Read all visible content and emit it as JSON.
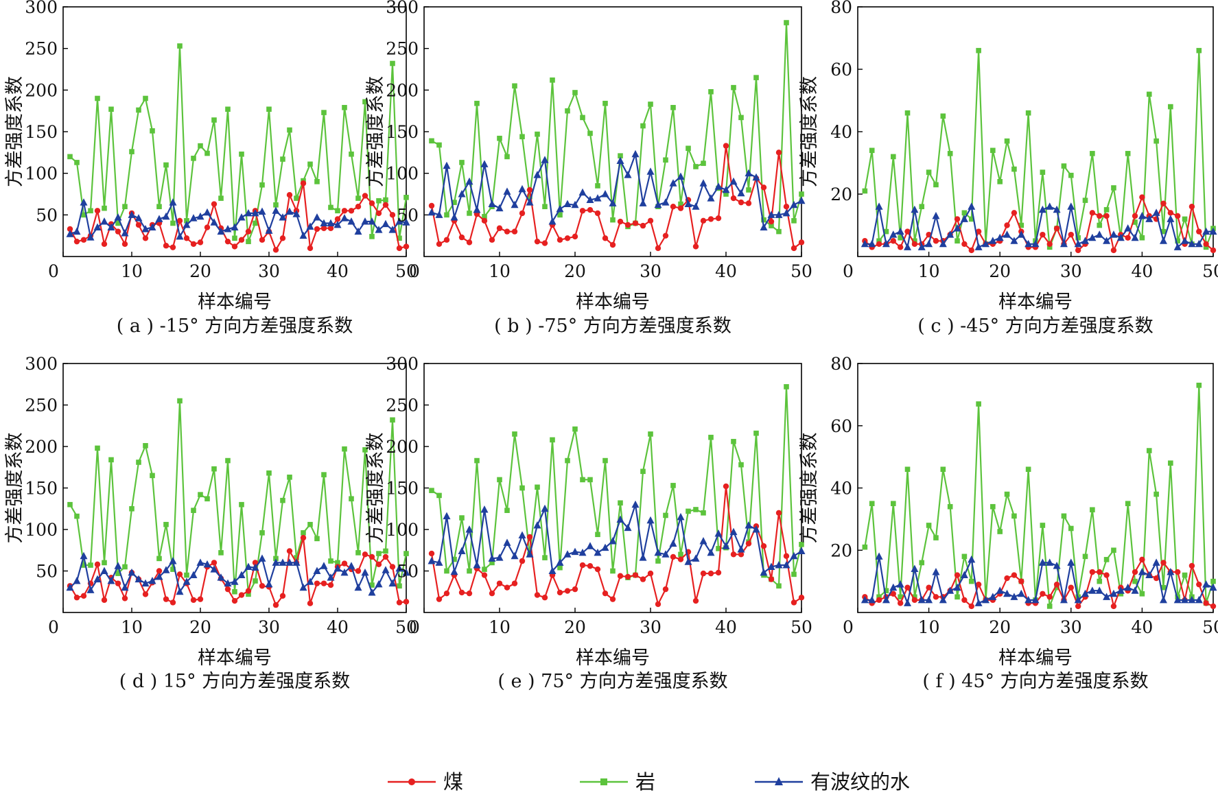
{
  "legend": {
    "position": "bottom",
    "entries": [
      {
        "label": "煤",
        "color": "#e62020",
        "marker": "circle"
      },
      {
        "label": "岩",
        "color": "#5cc33c",
        "marker": "square"
      },
      {
        "label": "有波纹的水",
        "color": "#1f3f9e",
        "marker": "triangle"
      }
    ]
  },
  "chart_data": [
    {
      "type": "line",
      "caption": "( a ) -15° 方向方差强度系数",
      "xlabel": "样本编号",
      "ylabel": "方差强度系数",
      "xlim": [
        0,
        50
      ],
      "ylim": [
        0,
        300
      ],
      "xticks": [
        0,
        10,
        20,
        30,
        40,
        50
      ],
      "yticks": [
        50,
        100,
        150,
        200,
        250,
        300
      ],
      "origin_label": "0",
      "series": [
        {
          "name": "煤",
          "values": [
            33,
            18,
            20,
            25,
            55,
            15,
            39,
            30,
            15,
            52,
            38,
            22,
            38,
            40,
            13,
            11,
            43,
            22,
            15,
            17,
            35,
            63,
            34,
            18,
            12,
            20,
            30,
            55,
            20,
            30,
            8,
            22,
            74,
            55,
            88,
            10,
            33,
            34,
            34,
            45,
            55,
            55,
            60,
            73,
            64,
            52,
            62,
            50,
            10,
            12
          ]
        },
        {
          "name": "岩",
          "values": [
            120,
            113,
            50,
            55,
            190,
            58,
            177,
            40,
            60,
            126,
            176,
            190,
            151,
            60,
            110,
            40,
            253,
            43,
            118,
            133,
            124,
            164,
            70,
            177,
            22,
            123,
            18,
            40,
            86,
            177,
            62,
            117,
            152,
            70,
            91,
            111,
            90,
            173,
            59,
            55,
            179,
            123,
            70,
            186,
            24,
            67,
            68,
            232,
            22,
            71
          ]
        },
        {
          "name": "有波纹的水",
          "values": [
            27,
            30,
            65,
            23,
            35,
            42,
            35,
            47,
            28,
            50,
            46,
            33,
            35,
            45,
            48,
            65,
            24,
            38,
            46,
            48,
            53,
            41,
            30,
            33,
            35,
            47,
            52,
            52,
            54,
            31,
            55,
            47,
            54,
            51,
            25,
            36,
            47,
            40,
            40,
            38,
            46,
            42,
            30,
            42,
            42,
            32,
            39,
            32,
            42,
            41
          ]
        }
      ]
    },
    {
      "type": "line",
      "caption": "( b ) -75° 方向方差强度系数",
      "xlabel": "样本编号",
      "ylabel": "方差强度系数",
      "xlim": [
        0,
        50
      ],
      "ylim": [
        0,
        300
      ],
      "xticks": [
        0,
        10,
        20,
        30,
        40,
        50
      ],
      "yticks": [
        50,
        100,
        150,
        200,
        250,
        300
      ],
      "origin_label": "0",
      "series": [
        {
          "name": "煤",
          "values": [
            61,
            15,
            20,
            43,
            23,
            17,
            51,
            43,
            20,
            34,
            30,
            30,
            52,
            80,
            18,
            16,
            38,
            20,
            22,
            24,
            55,
            56,
            52,
            22,
            14,
            42,
            38,
            40,
            37,
            43,
            10,
            25,
            60,
            58,
            68,
            12,
            43,
            45,
            46,
            133,
            70,
            65,
            64,
            94,
            83,
            42,
            125,
            60,
            10,
            17
          ]
        },
        {
          "name": "岩",
          "values": [
            139,
            134,
            50,
            65,
            113,
            52,
            184,
            48,
            60,
            142,
            120,
            205,
            144,
            72,
            147,
            60,
            212,
            50,
            175,
            197,
            167,
            148,
            85,
            184,
            44,
            121,
            36,
            40,
            157,
            183,
            60,
            116,
            179,
            63,
            130,
            108,
            112,
            198,
            82,
            75,
            203,
            167,
            80,
            215,
            44,
            37,
            30,
            281,
            43,
            75
          ]
        },
        {
          "name": "有波纹的水",
          "values": [
            53,
            50,
            109,
            47,
            75,
            90,
            56,
            111,
            63,
            58,
            78,
            62,
            81,
            65,
            98,
            116,
            42,
            57,
            63,
            62,
            77,
            68,
            70,
            75,
            64,
            115,
            98,
            123,
            64,
            102,
            62,
            65,
            88,
            96,
            63,
            60,
            88,
            70,
            84,
            80,
            90,
            76,
            100,
            95,
            35,
            50,
            50,
            52,
            62,
            67
          ]
        }
      ]
    },
    {
      "type": "line",
      "caption": "( c ) -45° 方向方差强度系数",
      "xlabel": "样本编号",
      "ylabel": "方差强度系数",
      "xlim": [
        0,
        50
      ],
      "ylim": [
        0,
        80
      ],
      "xticks": [
        0,
        10,
        20,
        30,
        40,
        50
      ],
      "yticks": [
        20,
        40,
        60,
        80
      ],
      "origin_label": "0",
      "series": [
        {
          "name": "煤",
          "values": [
            5,
            3,
            4,
            4,
            5,
            3,
            8,
            4,
            4,
            7,
            5,
            5,
            7,
            12,
            4,
            2,
            8,
            4,
            4,
            5,
            10,
            14,
            8,
            3,
            3,
            7,
            4,
            9,
            4,
            7,
            2,
            4,
            14,
            13,
            13,
            2,
            7,
            6,
            13,
            19,
            13,
            12,
            17,
            14,
            13,
            4,
            16,
            8,
            4,
            2
          ]
        },
        {
          "name": "岩",
          "values": [
            21,
            34,
            5,
            8,
            32,
            6,
            46,
            5,
            16,
            27,
            23,
            45,
            33,
            5,
            14,
            12,
            66,
            4,
            34,
            24,
            37,
            28,
            10,
            46,
            5,
            27,
            3,
            9,
            29,
            26,
            6,
            18,
            33,
            10,
            15,
            22,
            6,
            33,
            11,
            6,
            52,
            37,
            8,
            48,
            5,
            12,
            4,
            66,
            3,
            9
          ]
        },
        {
          "name": "有波纹的水",
          "values": [
            4,
            4,
            16,
            4,
            7,
            8,
            3,
            15,
            3,
            4,
            13,
            4,
            7,
            9,
            12,
            16,
            3,
            4,
            5,
            6,
            7,
            5,
            7,
            4,
            4,
            15,
            16,
            15,
            4,
            16,
            4,
            5,
            6,
            7,
            5,
            7,
            6,
            9,
            6,
            13,
            12,
            14,
            5,
            12,
            3,
            5,
            4,
            4,
            8,
            8
          ]
        }
      ]
    },
    {
      "type": "line",
      "caption": "( d ) 15° 方向方差强度系数",
      "xlabel": "样本编号",
      "ylabel": "方差强度系数",
      "xlim": [
        0,
        50
      ],
      "ylim": [
        0,
        300
      ],
      "xticks": [
        0,
        10,
        20,
        30,
        40,
        50
      ],
      "yticks": [
        50,
        100,
        150,
        200,
        250,
        300
      ],
      "origin_label": "0",
      "series": [
        {
          "name": "煤",
          "values": [
            32,
            18,
            20,
            35,
            58,
            15,
            42,
            35,
            17,
            48,
            40,
            22,
            36,
            50,
            16,
            12,
            46,
            35,
            15,
            16,
            55,
            60,
            41,
            28,
            14,
            21,
            26,
            60,
            32,
            31,
            9,
            20,
            74,
            60,
            90,
            11,
            35,
            35,
            33,
            55,
            59,
            52,
            50,
            70,
            67,
            58,
            67,
            55,
            12,
            13
          ]
        },
        {
          "name": "岩",
          "values": [
            130,
            116,
            57,
            57,
            198,
            60,
            184,
            47,
            55,
            125,
            181,
            201,
            165,
            65,
            106,
            52,
            255,
            45,
            123,
            142,
            137,
            173,
            72,
            183,
            25,
            130,
            22,
            38,
            96,
            168,
            65,
            135,
            163,
            66,
            96,
            106,
            89,
            166,
            62,
            60,
            197,
            137,
            72,
            196,
            33,
            71,
            74,
            232,
            32,
            71
          ]
        },
        {
          "name": "有波纹的水",
          "values": [
            30,
            38,
            68,
            27,
            40,
            50,
            38,
            56,
            30,
            48,
            40,
            35,
            38,
            43,
            51,
            62,
            25,
            37,
            45,
            60,
            58,
            52,
            42,
            35,
            37,
            45,
            55,
            54,
            65,
            34,
            60,
            60,
            60,
            60,
            30,
            37,
            50,
            56,
            42,
            53,
            48,
            56,
            30,
            48,
            24,
            34,
            51,
            35,
            53,
            48
          ]
        }
      ]
    },
    {
      "type": "line",
      "caption": "( e ) 75° 方向方差强度系数",
      "xlabel": "样本编号",
      "ylabel": "方差强度系数",
      "xlim": [
        0,
        50
      ],
      "ylim": [
        0,
        300
      ],
      "xticks": [
        0,
        10,
        20,
        30,
        40,
        50
      ],
      "yticks": [
        50,
        100,
        150,
        200,
        250,
        300
      ],
      "origin_label": "0",
      "series": [
        {
          "name": "煤",
          "values": [
            71,
            16,
            23,
            45,
            24,
            23,
            53,
            45,
            23,
            35,
            30,
            35,
            62,
            91,
            21,
            18,
            45,
            24,
            26,
            28,
            57,
            56,
            52,
            23,
            16,
            44,
            43,
            45,
            40,
            47,
            10,
            28,
            67,
            64,
            73,
            14,
            47,
            47,
            48,
            152,
            70,
            70,
            83,
            104,
            80,
            40,
            120,
            68,
            12,
            18
          ]
        },
        {
          "name": "岩",
          "values": [
            147,
            141,
            50,
            64,
            114,
            50,
            183,
            52,
            60,
            160,
            123,
            215,
            150,
            70,
            151,
            66,
            208,
            54,
            183,
            221,
            160,
            160,
            94,
            183,
            50,
            132,
            42,
            45,
            170,
            215,
            62,
            117,
            153,
            70,
            122,
            124,
            120,
            211,
            77,
            78,
            206,
            178,
            85,
            216,
            45,
            40,
            32,
            272,
            46,
            82
          ]
        },
        {
          "name": "有波纹的水",
          "values": [
            62,
            60,
            116,
            49,
            74,
            100,
            57,
            124,
            65,
            66,
            84,
            68,
            93,
            70,
            105,
            125,
            50,
            60,
            70,
            73,
            72,
            80,
            72,
            78,
            86,
            112,
            102,
            130,
            66,
            111,
            72,
            70,
            83,
            115,
            61,
            65,
            86,
            72,
            95,
            80,
            97,
            76,
            105,
            100,
            48,
            55,
            57,
            57,
            68,
            74
          ]
        }
      ]
    },
    {
      "type": "line",
      "caption": "( f ) 45° 方向方差强度系数",
      "xlabel": "样本编号",
      "ylabel": "方差强度系数",
      "xlim": [
        0,
        50
      ],
      "ylim": [
        0,
        80
      ],
      "xticks": [
        0,
        10,
        20,
        30,
        40,
        50
      ],
      "yticks": [
        20,
        40,
        60,
        80
      ],
      "origin_label": "0",
      "series": [
        {
          "name": "煤",
          "values": [
            5,
            3,
            4,
            5,
            6,
            3,
            8,
            4,
            4,
            8,
            5,
            5,
            7,
            12,
            4,
            2,
            9,
            4,
            4,
            6,
            11,
            12,
            10,
            3,
            3,
            6,
            5,
            9,
            4,
            8,
            2,
            5,
            13,
            13,
            12,
            2,
            8,
            7,
            13,
            17,
            12,
            11,
            16,
            13,
            13,
            4,
            15,
            9,
            3,
            2
          ]
        },
        {
          "name": "岩",
          "values": [
            21,
            35,
            5,
            7,
            35,
            5,
            46,
            5,
            16,
            28,
            24,
            46,
            34,
            5,
            18,
            10,
            67,
            4,
            34,
            26,
            38,
            31,
            10,
            46,
            4,
            28,
            2,
            8,
            31,
            27,
            5,
            18,
            33,
            10,
            17,
            20,
            6,
            35,
            10,
            6,
            52,
            38,
            8,
            48,
            5,
            12,
            5,
            73,
            3,
            10
          ]
        },
        {
          "name": "有波纹的水",
          "values": [
            4,
            4,
            18,
            4,
            8,
            9,
            3,
            14,
            4,
            4,
            13,
            4,
            7,
            8,
            12,
            17,
            3,
            4,
            5,
            7,
            6,
            5,
            6,
            4,
            4,
            16,
            16,
            15,
            4,
            16,
            4,
            6,
            7,
            7,
            5,
            6,
            7,
            8,
            7,
            13,
            12,
            16,
            4,
            13,
            4,
            4,
            4,
            4,
            9,
            8
          ]
        }
      ]
    }
  ]
}
